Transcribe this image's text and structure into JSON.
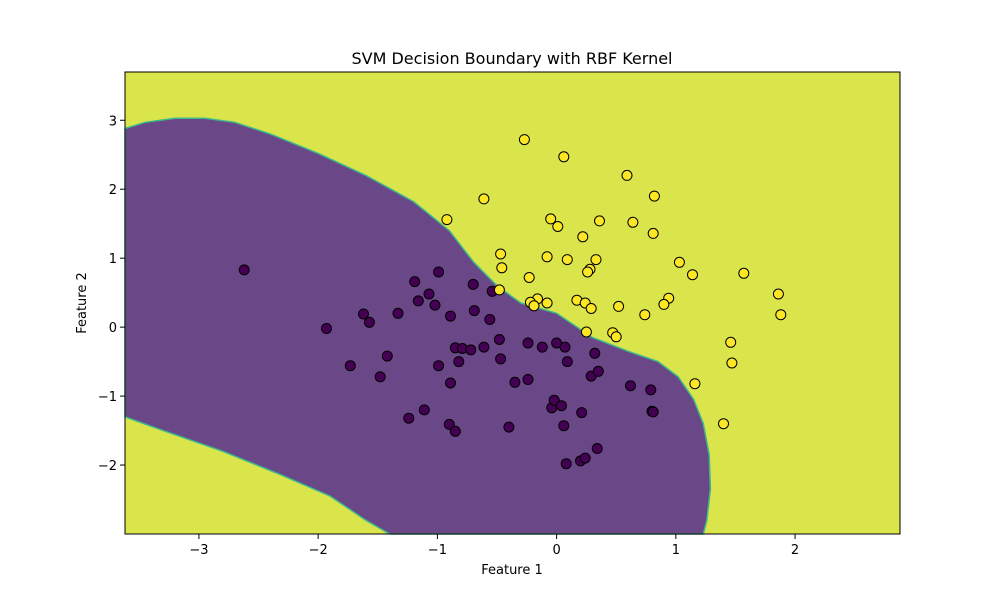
{
  "chart_data": {
    "type": "scatter",
    "title": "SVM Decision Boundary with RBF Kernel",
    "xlabel": "Feature 1",
    "ylabel": "Feature 2",
    "xlim": [
      -3.62,
      2.88
    ],
    "ylim": [
      -3.0,
      3.7
    ],
    "x_ticks": [
      -3,
      -2,
      -1,
      0,
      1,
      2
    ],
    "y_ticks": [
      -2,
      -1,
      0,
      1,
      2,
      3
    ],
    "x_tick_labels": [
      "−3",
      "−2",
      "−1",
      "0",
      "1",
      "2"
    ],
    "y_tick_labels": [
      "−2",
      "−1",
      "0",
      "1",
      "2",
      "3"
    ],
    "grid": false,
    "region_colors": {
      "class_0": "#6a4887",
      "class_1": "#d9e54a",
      "boundary": "#3cb98f"
    },
    "point_colors": {
      "class_0": "#440154",
      "class_1": "#fde725",
      "edge": "#000000"
    },
    "decision_region_class_0_outline": [
      [
        -3.62,
        2.88
      ],
      [
        -3.45,
        2.97
      ],
      [
        -3.2,
        3.03
      ],
      [
        -2.95,
        3.03
      ],
      [
        -2.7,
        2.97
      ],
      [
        -2.4,
        2.8
      ],
      [
        -2.0,
        2.52
      ],
      [
        -1.6,
        2.2
      ],
      [
        -1.2,
        1.82
      ],
      [
        -0.9,
        1.4
      ],
      [
        -0.7,
        0.95
      ],
      [
        -0.5,
        0.6
      ],
      [
        -0.3,
        0.35
      ],
      [
        0.0,
        0.2
      ],
      [
        0.3,
        -0.15
      ],
      [
        0.6,
        -0.35
      ],
      [
        0.85,
        -0.5
      ],
      [
        1.02,
        -0.72
      ],
      [
        1.15,
        -1.05
      ],
      [
        1.23,
        -1.4
      ],
      [
        1.28,
        -1.85
      ],
      [
        1.29,
        -2.35
      ],
      [
        1.26,
        -2.8
      ],
      [
        1.23,
        -3.0
      ],
      [
        -1.4,
        -3.0
      ],
      [
        -1.6,
        -2.8
      ],
      [
        -1.9,
        -2.45
      ],
      [
        -2.3,
        -2.15
      ],
      [
        -2.8,
        -1.8
      ],
      [
        -3.3,
        -1.5
      ],
      [
        -3.62,
        -1.3
      ]
    ],
    "series": [
      {
        "class": 0,
        "points": [
          [
            -2.62,
            0.83
          ],
          [
            -1.93,
            -0.02
          ],
          [
            -1.73,
            -0.56
          ],
          [
            -1.62,
            0.19
          ],
          [
            -1.57,
            0.07
          ],
          [
            -1.48,
            -0.72
          ],
          [
            -1.42,
            -0.42
          ],
          [
            -1.33,
            0.2
          ],
          [
            -1.24,
            -1.32
          ],
          [
            -1.19,
            0.66
          ],
          [
            -1.16,
            0.38
          ],
          [
            -1.11,
            -1.2
          ],
          [
            -1.07,
            0.48
          ],
          [
            -1.02,
            0.32
          ],
          [
            -0.99,
            0.8
          ],
          [
            -0.99,
            -0.56
          ],
          [
            -0.9,
            -1.41
          ],
          [
            -0.89,
            -0.81
          ],
          [
            -0.89,
            0.16
          ],
          [
            -0.85,
            -1.51
          ],
          [
            -0.85,
            -0.3
          ],
          [
            -0.82,
            -0.5
          ],
          [
            -0.79,
            -0.31
          ],
          [
            -0.72,
            -0.33
          ],
          [
            -0.7,
            0.62
          ],
          [
            -0.69,
            0.24
          ],
          [
            -0.61,
            -0.29
          ],
          [
            -0.56,
            0.11
          ],
          [
            -0.54,
            0.52
          ],
          [
            -0.48,
            -0.18
          ],
          [
            -0.47,
            -0.46
          ],
          [
            -0.4,
            -1.45
          ],
          [
            -0.35,
            -0.8
          ],
          [
            -0.24,
            -0.76
          ],
          [
            -0.24,
            -0.23
          ],
          [
            -0.12,
            -0.29
          ],
          [
            -0.04,
            -1.17
          ],
          [
            -0.02,
            -1.06
          ],
          [
            0.0,
            -0.23
          ],
          [
            0.04,
            -1.14
          ],
          [
            0.06,
            -1.43
          ],
          [
            0.07,
            -0.29
          ],
          [
            0.08,
            -1.98
          ],
          [
            0.09,
            -0.5
          ],
          [
            0.2,
            -1.94
          ],
          [
            0.21,
            -1.24
          ],
          [
            0.24,
            -1.9
          ],
          [
            0.29,
            -0.71
          ],
          [
            0.32,
            -0.38
          ],
          [
            0.34,
            -1.76
          ],
          [
            0.35,
            -0.64
          ],
          [
            0.62,
            -0.85
          ],
          [
            0.79,
            -0.91
          ],
          [
            0.8,
            -1.22
          ],
          [
            0.81,
            -1.23
          ]
        ]
      },
      {
        "class": 1,
        "points": [
          [
            -0.27,
            2.72
          ],
          [
            0.06,
            2.47
          ],
          [
            0.59,
            2.2
          ],
          [
            0.82,
            1.9
          ],
          [
            -0.61,
            1.86
          ],
          [
            -0.92,
            1.56
          ],
          [
            -0.05,
            1.57
          ],
          [
            0.36,
            1.54
          ],
          [
            0.64,
            1.52
          ],
          [
            0.01,
            1.46
          ],
          [
            0.81,
            1.36
          ],
          [
            0.22,
            1.31
          ],
          [
            -0.47,
            1.06
          ],
          [
            -0.08,
            1.02
          ],
          [
            0.09,
            0.98
          ],
          [
            0.33,
            0.98
          ],
          [
            1.03,
            0.94
          ],
          [
            -0.46,
            0.86
          ],
          [
            0.28,
            0.84
          ],
          [
            0.26,
            0.8
          ],
          [
            1.57,
            0.78
          ],
          [
            1.14,
            0.76
          ],
          [
            -0.23,
            0.72
          ],
          [
            -0.48,
            0.54
          ],
          [
            1.86,
            0.48
          ],
          [
            0.94,
            0.42
          ],
          [
            -0.16,
            0.41
          ],
          [
            0.17,
            0.39
          ],
          [
            -0.22,
            0.36
          ],
          [
            -0.08,
            0.35
          ],
          [
            0.24,
            0.35
          ],
          [
            0.9,
            0.33
          ],
          [
            -0.19,
            0.31
          ],
          [
            0.52,
            0.3
          ],
          [
            0.29,
            0.27
          ],
          [
            1.88,
            0.18
          ],
          [
            0.74,
            0.18
          ],
          [
            0.25,
            -0.07
          ],
          [
            0.47,
            -0.08
          ],
          [
            0.5,
            -0.14
          ],
          [
            1.46,
            -0.22
          ],
          [
            1.47,
            -0.52
          ],
          [
            1.16,
            -0.82
          ],
          [
            1.4,
            -1.4
          ]
        ]
      }
    ]
  }
}
